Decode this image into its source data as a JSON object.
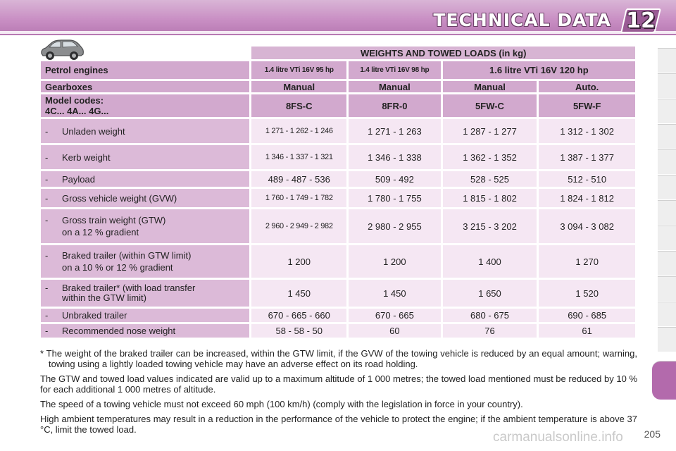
{
  "header": {
    "title": "TECHNICAL DATA",
    "chapter": "12"
  },
  "table": {
    "caption": "WEIGHTS AND TOWED LOADS (in kg)",
    "engines": {
      "label": "Petrol engines",
      "col1": "1.4 litre VTi 16V 95 hp",
      "col2": "1.4 litre VTi 16V 98 hp",
      "col34": "1.6 litre VTi 16V 120 hp"
    },
    "gearboxes": {
      "label": "Gearboxes",
      "values": [
        "Manual",
        "Manual",
        "Manual",
        "Auto."
      ]
    },
    "codes": {
      "label1": "Model codes:",
      "label2": "4C... 4A... 4G...",
      "values": [
        "8FS-C",
        "8FR-0",
        "5FW-C",
        "5FW-F"
      ]
    },
    "rows": [
      {
        "dash": "-",
        "label": "Unladen weight",
        "label2": "",
        "values": [
          "1 271 - 1 262 - 1 246",
          "1 271 - 1 263",
          "1 287 - 1 277",
          "1 312 - 1 302"
        ]
      },
      {
        "dash": "-",
        "label": "Kerb weight",
        "label2": "",
        "values": [
          "1 346 - 1 337 - 1 321",
          "1 346 - 1 338",
          "1 362 - 1 352",
          "1 387 - 1 377"
        ]
      },
      {
        "dash": "-",
        "label": "Payload",
        "label2": "",
        "values": [
          "489 - 487 - 536",
          "509 - 492",
          "528 - 525",
          "512 - 510"
        ]
      },
      {
        "dash": "-",
        "label": "Gross vehicle weight (GVW)",
        "label2": "",
        "values": [
          "1 760 - 1 749 - 1 782",
          "1 780 - 1 755",
          "1 815 - 1 802",
          "1 824 - 1 812"
        ]
      },
      {
        "dash": "-",
        "label": "Gross train weight (GTW)",
        "label2": "on a 12 % gradient",
        "values": [
          "2 960 - 2 949 - 2 982",
          "2 980 - 2 955",
          "3 215 - 3 202",
          "3 094 - 3 082"
        ]
      },
      {
        "dash": "-",
        "label": "Braked trailer (within GTW limit)",
        "label2": "on a 10 % or 12 % gradient",
        "values": [
          "1 200",
          "1 200",
          "1 400",
          "1 270"
        ]
      },
      {
        "dash": "-",
        "label": "Braked trailer* (with load transfer",
        "label2": "within the GTW limit)",
        "values": [
          "1 450",
          "1 450",
          "1 650",
          "1 520"
        ]
      },
      {
        "dash": "-",
        "label": "Unbraked trailer",
        "label2": "",
        "values": [
          "670 - 665 - 660",
          "670 - 665",
          "680 - 675",
          "690 - 685"
        ]
      },
      {
        "dash": "-",
        "label": "Recommended nose weight",
        "label2": "",
        "values": [
          "58 - 58 - 50",
          "60",
          "76",
          "61"
        ]
      }
    ]
  },
  "notes": {
    "footnote": "* The weight of the braked trailer can be increased, within the GTW limit, if the GVW of the towing vehicle is reduced by an equal amount; warning, towing using a lightly loaded towing vehicle may have an adverse effect on its road holding.",
    "p1": "The GTW and towed load values indicated are valid up to a maximum altitude of 1 000 metres; the towed load mentioned must be reduced by 10 % for each additional 1 000 metres of altitude.",
    "p2": "The speed of a towing vehicle must not exceed 60 mph (100 km/h) (comply with the legislation in force in your country).",
    "p3": "High ambient temperatures may result in a reduction in the performance of the vehicle to protect the engine; if the ambient temperature is above 37 °C, limit the towed load."
  },
  "page_number": "205",
  "watermark": "carmanualsonline.info",
  "icons": {
    "car": "car-icon",
    "chapter_badge": "chapter-badge-icon"
  },
  "colors": {
    "band": "#c98fc4",
    "header_cell": "#d2a9ce",
    "label_cell": "#dcbad8",
    "value_cell": "#f5e7f3",
    "active_tab": "#b36aac"
  }
}
